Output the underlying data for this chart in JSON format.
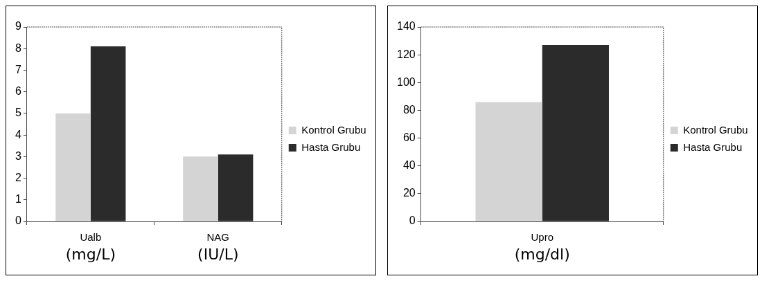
{
  "chart_data": [
    {
      "type": "bar",
      "categories": [
        "Ualb",
        "NAG"
      ],
      "series": [
        {
          "name": "Kontrol Grubu",
          "color": "#d4d4d4",
          "values": [
            5.0,
            3.0
          ]
        },
        {
          "name": "Hasta Grubu",
          "color": "#2b2b2b",
          "values": [
            8.1,
            3.1
          ]
        }
      ],
      "ylim": [
        0,
        9
      ],
      "yticks": [
        0,
        1,
        2,
        3,
        4,
        5,
        6,
        7,
        8,
        9
      ],
      "grid": false,
      "legend": "right",
      "annotations": [
        "(mg/L)",
        "(IU/L)"
      ]
    },
    {
      "type": "bar",
      "categories": [
        "Upro"
      ],
      "series": [
        {
          "name": "Kontrol Grubu",
          "color": "#d4d4d4",
          "values": [
            86
          ]
        },
        {
          "name": "Hasta Grubu",
          "color": "#2b2b2b",
          "values": [
            127
          ]
        }
      ],
      "ylim": [
        0,
        140
      ],
      "yticks": [
        0,
        20,
        40,
        60,
        80,
        100,
        120,
        140
      ],
      "grid": false,
      "legend": "right",
      "annotations": [
        "(mg/dl)"
      ]
    }
  ]
}
